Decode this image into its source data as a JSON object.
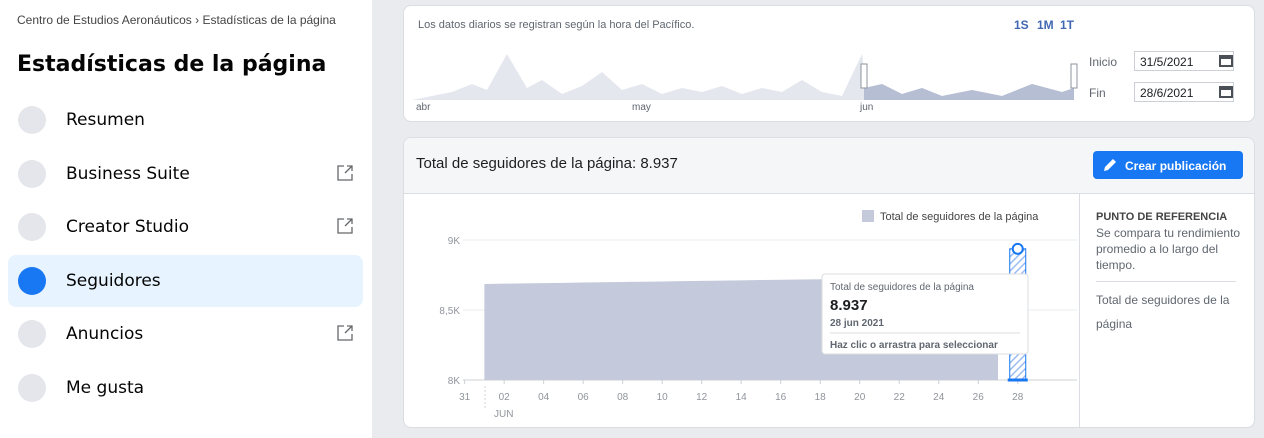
{
  "sidebar": {
    "breadcrumb": "Centro de Estudios Aeronáuticos › Estadísticas de la página",
    "title": "Estadísticas de la página",
    "items": [
      {
        "label": "Resumen",
        "external": false,
        "active": false
      },
      {
        "label": "Business Suite",
        "external": true,
        "active": false
      },
      {
        "label": "Creator Studio",
        "external": true,
        "active": false
      },
      {
        "label": "Seguidores",
        "external": false,
        "active": true
      },
      {
        "label": "Anuncios",
        "external": true,
        "active": false
      },
      {
        "label": "Me gusta",
        "external": false,
        "active": false
      }
    ]
  },
  "overview": {
    "note": "Los datos diarios se registran según la hora del Pacífico.",
    "ranges": [
      "1S",
      "1M",
      "1T"
    ],
    "months": [
      "abr",
      "may",
      "jun"
    ],
    "start_label": "Inicio",
    "start": "31/5/2021",
    "end_label": "Fin",
    "end": "28/6/2021"
  },
  "card": {
    "title": "Total de seguidores de la página: 8.937",
    "button": "Crear publicación"
  },
  "chart_data": {
    "type": "area",
    "x": [
      1,
      2,
      3,
      4,
      5,
      6,
      7,
      8,
      9,
      10,
      11,
      12,
      13,
      14,
      15,
      16,
      17,
      18,
      19,
      20,
      21,
      22,
      23,
      24,
      25,
      26,
      27,
      28
    ],
    "series": [
      {
        "name": "Total de seguidores de la página",
        "color": "#c4cadb",
        "values": [
          8686,
          8688,
          8690,
          8692,
          8694,
          8696,
          8698,
          8700,
          8702,
          8704,
          8706,
          8708,
          8710,
          8712,
          8714,
          8716,
          8718,
          8720,
          8722,
          8724,
          8726,
          8728,
          8730,
          8732,
          8734,
          8736,
          8738,
          8937
        ]
      }
    ],
    "ylim": [
      8000,
      9000
    ],
    "yticks": [
      {
        "value": 8000,
        "label": "8K"
      },
      {
        "value": 8500,
        "label": "8,5K"
      },
      {
        "value": 9000,
        "label": "9K"
      }
    ],
    "xlim": [
      -1.5,
      31
    ],
    "xticks": [
      {
        "value": 0,
        "label": "31"
      },
      {
        "value": 2,
        "label": "02"
      },
      {
        "value": 4,
        "label": "04"
      },
      {
        "value": 6,
        "label": "06"
      },
      {
        "value": 8,
        "label": "08"
      },
      10,
      12,
      14,
      16,
      18,
      20,
      22,
      24,
      26,
      28
    ],
    "x_month": "JUN",
    "grid": true,
    "legend": "top-right",
    "tooltip": {
      "title": "Total de seguidores de la página",
      "value_label": "8.937",
      "date": "28 jun 2021",
      "hint": "Haz clic o arrastra para seleccionar"
    }
  },
  "reference": {
    "heading": "PUNTO DE REFERENCIA",
    "description": "Se compara tu rendimiento promedio a lo largo del tiempo.",
    "metric": "Total de seguidores de la página"
  }
}
